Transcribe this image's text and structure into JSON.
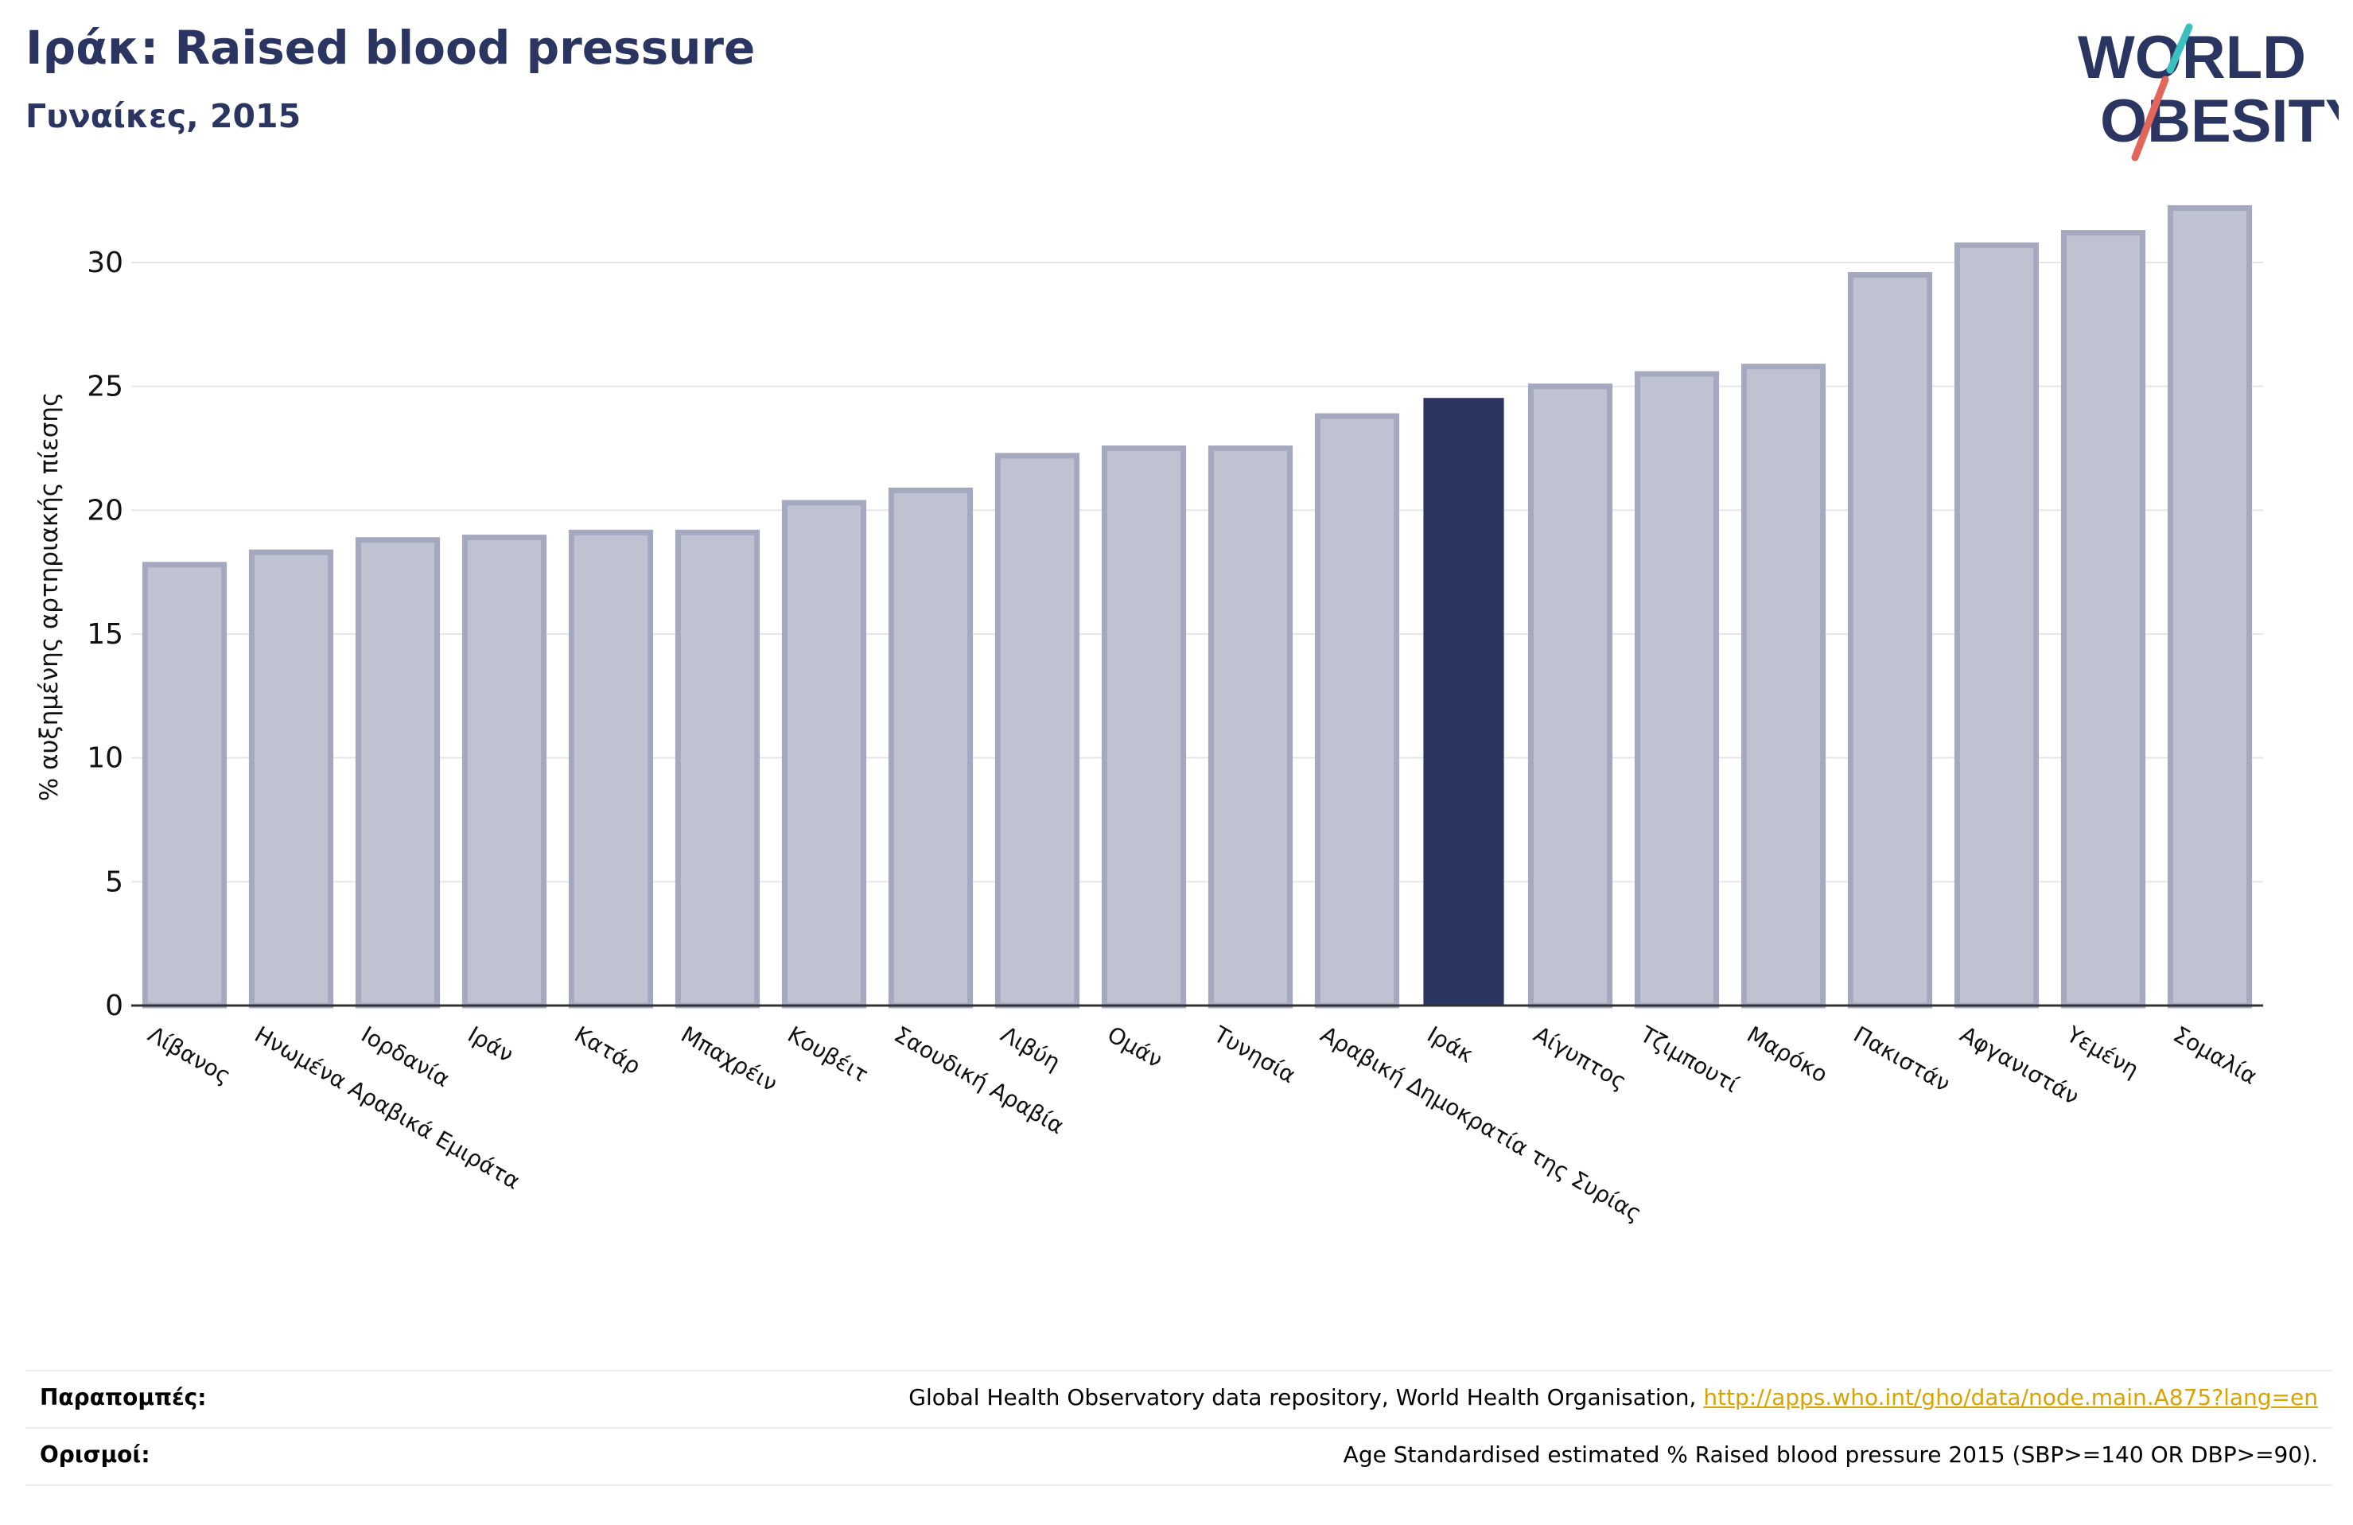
{
  "header": {
    "title": "Ιράκ: Raised blood pressure",
    "subtitle": "Γυναίκες, 2015"
  },
  "logo": {
    "line1": "WORLD",
    "line2": "OBESITY",
    "colors": {
      "text": "#2b3562",
      "slash_teal": "#3cbfbf",
      "slash_red": "#e2665a"
    }
  },
  "colors": {
    "bar_default": "#bfc2d0",
    "bar_default_edge": "#a5a9c0",
    "bar_highlight": "#2b3562",
    "axis": "#333333",
    "grid": "#e6e6e6"
  },
  "chart_data": {
    "type": "bar",
    "title": "",
    "xlabel": "",
    "ylabel": "% αυξημένης αρτηριακής πίεσης",
    "ylim": [
      0,
      33
    ],
    "yticks": [
      0,
      5,
      10,
      15,
      20,
      25,
      30
    ],
    "grid": true,
    "highlight": "Ιράκ",
    "categories": [
      "Λίβανος",
      "Ηνωμένα Αραβικά Εμιράτα",
      "Ιορδανία",
      "Ιράν",
      "Κατάρ",
      "Μπαχρέιν",
      "Κουβέιτ",
      "Σαουδική Αραβία",
      "Λιβύη",
      "Ομάν",
      "Τυνησία",
      "Αραβική Δημοκρατία της Συρίας",
      "Ιράκ",
      "Αίγυπτος",
      "Τζιμπουτί",
      "Μαρόκο",
      "Πακιστάν",
      "Αφγανιστάν",
      "Υεμένη",
      "Σομαλία"
    ],
    "values": [
      17.8,
      18.3,
      18.8,
      18.9,
      19.1,
      19.1,
      20.3,
      20.8,
      22.2,
      22.5,
      22.5,
      23.8,
      24.5,
      25.0,
      25.5,
      25.8,
      29.5,
      30.7,
      31.2,
      32.2
    ]
  },
  "footer": {
    "references_label": "Παραπομπές:",
    "references_text": "Global Health Observatory data repository, World Health Organisation, ",
    "references_link": "http://apps.who.int/gho/data/node.main.A875?lang=en",
    "definitions_label": "Ορισμοί:",
    "definitions_text": "Age Standardised estimated % Raised blood pressure 2015 (SBP>=140 OR DBP>=90)."
  }
}
